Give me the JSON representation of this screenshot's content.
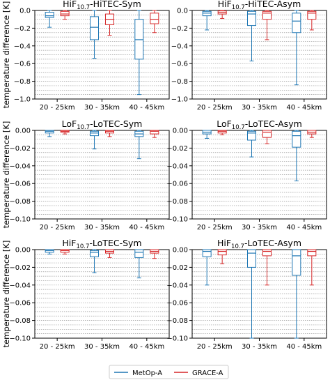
{
  "chart_data": [
    {
      "type": "boxplot",
      "title": {
        "prefix": "HiF",
        "sub": "10.7",
        "suffix": "-HiTEC-Sym"
      },
      "ylabel": "temperature difference [K]",
      "ylim": [
        -1.0,
        0.0
      ],
      "yticks": [
        0.0,
        -0.2,
        -0.4,
        -0.6,
        -0.8,
        -1.0
      ],
      "ytick_labels": [
        "0.0",
        "−0.2",
        "−0.4",
        "−0.6",
        "−0.8",
        "−1.0"
      ],
      "categories": [
        "20 - 25km",
        "30 - 35km",
        "40 - 45km"
      ],
      "series": [
        {
          "name": "MetOp-A",
          "boxes": [
            {
              "whislo": -0.19,
              "q1": -0.08,
              "med": -0.06,
              "q3": -0.02,
              "whishi": 0.0
            },
            {
              "whislo": -0.54,
              "q1": -0.33,
              "med": -0.19,
              "q3": -0.07,
              "whishi": 0.0
            },
            {
              "whislo": -0.95,
              "q1": -0.55,
              "med": -0.33,
              "q3": -0.1,
              "whishi": 0.0
            }
          ]
        },
        {
          "name": "GRACE-A",
          "boxes": [
            {
              "whislo": -0.1,
              "q1": -0.06,
              "med": -0.04,
              "q3": -0.01,
              "whishi": 0.0
            },
            {
              "whislo": -0.28,
              "q1": -0.16,
              "med": -0.1,
              "q3": -0.04,
              "whishi": 0.0
            },
            {
              "whislo": -0.25,
              "q1": -0.15,
              "med": -0.1,
              "q3": -0.03,
              "whishi": 0.0
            }
          ]
        }
      ]
    },
    {
      "type": "boxplot",
      "title": {
        "prefix": "HiF",
        "sub": "10.7",
        "suffix": "-HiTEC-Asym"
      },
      "ylabel": "",
      "ylim": [
        -1.0,
        0.0
      ],
      "yticks": [
        0.0,
        -0.2,
        -0.4,
        -0.6,
        -0.8,
        -1.0
      ],
      "ytick_labels": [
        "0.0",
        "−0.2",
        "−0.4",
        "−0.6",
        "−0.8",
        "−1.0"
      ],
      "categories": [
        "20 - 25km",
        "30 - 35km",
        "40 - 45km"
      ],
      "series": [
        {
          "name": "MetOp-A",
          "boxes": [
            {
              "whislo": -0.22,
              "q1": -0.06,
              "med": -0.03,
              "q3": -0.01,
              "whishi": 0.0
            },
            {
              "whislo": -0.57,
              "q1": -0.17,
              "med": -0.04,
              "q3": -0.01,
              "whishi": 0.0
            },
            {
              "whislo": -0.84,
              "q1": -0.25,
              "med": -0.12,
              "q3": -0.03,
              "whishi": 0.0
            }
          ]
        },
        {
          "name": "GRACE-A",
          "boxes": [
            {
              "whislo": -0.09,
              "q1": -0.04,
              "med": -0.02,
              "q3": -0.005,
              "whishi": 0.0
            },
            {
              "whislo": -0.33,
              "q1": -0.1,
              "med": -0.03,
              "q3": -0.01,
              "whishi": 0.0
            },
            {
              "whislo": -0.22,
              "q1": -0.1,
              "med": -0.03,
              "q3": -0.01,
              "whishi": 0.0
            }
          ]
        }
      ]
    },
    {
      "type": "boxplot",
      "title": {
        "prefix": "LoF",
        "sub": "10.7",
        "suffix": "-LoTEC-Sym"
      },
      "ylabel": "temperature difference [K]",
      "ylim": [
        -0.1,
        0.0
      ],
      "yticks": [
        0.0,
        -0.02,
        -0.04,
        -0.06,
        -0.08,
        -0.1
      ],
      "ytick_labels": [
        "0.00",
        "−0.02",
        "−0.04",
        "−0.06",
        "−0.08",
        "−0.10"
      ],
      "categories": [
        "20 - 25km",
        "30 - 35km",
        "40 - 45km"
      ],
      "series": [
        {
          "name": "MetOp-A",
          "boxes": [
            {
              "whislo": -0.007,
              "q1": -0.003,
              "med": -0.001,
              "q3": 0.0,
              "whishi": 0.0
            },
            {
              "whislo": -0.021,
              "q1": -0.006,
              "med": -0.003,
              "q3": -0.001,
              "whishi": 0.0
            },
            {
              "whislo": -0.032,
              "q1": -0.007,
              "med": -0.004,
              "q3": -0.001,
              "whishi": 0.002
            }
          ]
        },
        {
          "name": "GRACE-A",
          "boxes": [
            {
              "whislo": -0.004,
              "q1": -0.002,
              "med": -0.001,
              "q3": 0.0,
              "whishi": 0.001
            },
            {
              "whislo": -0.007,
              "q1": -0.003,
              "med": -0.001,
              "q3": 0.0,
              "whishi": 0.0
            },
            {
              "whislo": -0.008,
              "q1": -0.004,
              "med": -0.001,
              "q3": 0.0,
              "whishi": 0.003
            }
          ]
        }
      ]
    },
    {
      "type": "boxplot",
      "title": {
        "prefix": "LoF",
        "sub": "10.7",
        "suffix": "-LoTEC-Asym"
      },
      "ylabel": "",
      "ylim": [
        -0.1,
        0.0
      ],
      "yticks": [
        0.0,
        -0.02,
        -0.04,
        -0.06,
        -0.08,
        -0.1
      ],
      "ytick_labels": [
        "0.00",
        "−0.02",
        "−0.04",
        "−0.06",
        "−0.08",
        "−0.10"
      ],
      "categories": [
        "20 - 25km",
        "30 - 35km",
        "40 - 45km"
      ],
      "series": [
        {
          "name": "MetOp-A",
          "boxes": [
            {
              "whislo": -0.009,
              "q1": -0.004,
              "med": -0.002,
              "q3": 0.0,
              "whishi": 0.0
            },
            {
              "whislo": -0.03,
              "q1": -0.011,
              "med": -0.003,
              "q3": -0.001,
              "whishi": 0.0
            },
            {
              "whislo": -0.057,
              "q1": -0.019,
              "med": -0.006,
              "q3": -0.001,
              "whishi": 0.0
            }
          ]
        },
        {
          "name": "GRACE-A",
          "boxes": [
            {
              "whislo": -0.005,
              "q1": -0.003,
              "med": -0.001,
              "q3": 0.0,
              "whishi": 0.001
            },
            {
              "whislo": -0.015,
              "q1": -0.008,
              "med": -0.002,
              "q3": 0.0,
              "whishi": 0.0
            },
            {
              "whislo": -0.008,
              "q1": -0.004,
              "med": -0.002,
              "q3": 0.0,
              "whishi": 0.002
            }
          ]
        }
      ]
    },
    {
      "type": "boxplot",
      "title": {
        "prefix": "HiF",
        "sub": "10.7",
        "suffix": "-LoTEC-Sym"
      },
      "ylabel": "temperature difference [K]",
      "ylim": [
        -0.1,
        0.0
      ],
      "yticks": [
        0.0,
        -0.02,
        -0.04,
        -0.06,
        -0.08,
        -0.1
      ],
      "ytick_labels": [
        "0.00",
        "−0.02",
        "−0.04",
        "−0.06",
        "−0.08",
        "−0.10"
      ],
      "categories": [
        "20 - 25km",
        "30 - 35km",
        "40 - 45km"
      ],
      "series": [
        {
          "name": "MetOp-A",
          "boxes": [
            {
              "whislo": -0.005,
              "q1": -0.003,
              "med": -0.001,
              "q3": 0.0,
              "whishi": 0.0
            },
            {
              "whislo": -0.026,
              "q1": -0.008,
              "med": -0.003,
              "q3": -0.001,
              "whishi": 0.0
            },
            {
              "whislo": -0.032,
              "q1": -0.009,
              "med": -0.003,
              "q3": 0.0,
              "whishi": 0.003
            }
          ]
        },
        {
          "name": "GRACE-A",
          "boxes": [
            {
              "whislo": -0.005,
              "q1": -0.003,
              "med": -0.001,
              "q3": 0.0,
              "whishi": 0.0
            },
            {
              "whislo": -0.009,
              "q1": -0.004,
              "med": -0.002,
              "q3": 0.0,
              "whishi": 0.0
            },
            {
              "whislo": -0.01,
              "q1": -0.004,
              "med": -0.002,
              "q3": 0.0,
              "whishi": 0.002
            }
          ]
        }
      ]
    },
    {
      "type": "boxplot",
      "title": {
        "prefix": "HiF",
        "sub": "10.7",
        "suffix": "-LoTEC-Asym"
      },
      "ylabel": "",
      "ylim": [
        -0.1,
        0.0
      ],
      "yticks": [
        0.0,
        -0.02,
        -0.04,
        -0.06,
        -0.08,
        -0.1
      ],
      "ytick_labels": [
        "0.00",
        "−0.02",
        "−0.04",
        "−0.06",
        "−0.08",
        "−0.10"
      ],
      "categories": [
        "20 - 25km",
        "30 - 35km",
        "40 - 45km"
      ],
      "series": [
        {
          "name": "MetOp-A",
          "boxes": [
            {
              "whislo": -0.04,
              "q1": -0.008,
              "med": -0.002,
              "q3": 0.0,
              "whishi": 0.0
            },
            {
              "whislo": -0.1,
              "q1": -0.02,
              "med": -0.004,
              "q3": 0.0,
              "whishi": 0.0
            },
            {
              "whislo": -0.1,
              "q1": -0.029,
              "med": -0.007,
              "q3": 0.0,
              "whishi": 0.003
            }
          ]
        },
        {
          "name": "GRACE-A",
          "boxes": [
            {
              "whislo": -0.016,
              "q1": -0.006,
              "med": -0.002,
              "q3": 0.0,
              "whishi": 0.0
            },
            {
              "whislo": -0.04,
              "q1": -0.007,
              "med": -0.002,
              "q3": 0.0,
              "whishi": 0.0
            },
            {
              "whislo": -0.04,
              "q1": -0.007,
              "med": -0.002,
              "q3": 0.0,
              "whishi": 0.002
            }
          ]
        }
      ]
    }
  ],
  "legend": {
    "placement": "bottom-center",
    "entries": [
      {
        "label": "MetOp-A",
        "color": "#1f77b4"
      },
      {
        "label": "GRACE-A",
        "color": "#d62728"
      }
    ]
  },
  "grid": {
    "y_minor": true,
    "style": "dotted"
  }
}
